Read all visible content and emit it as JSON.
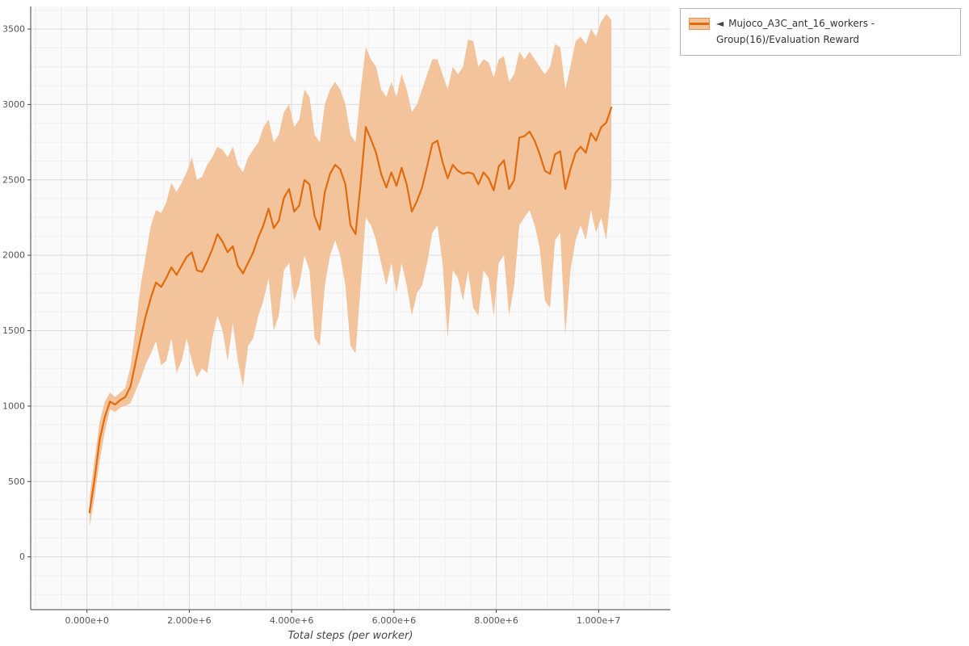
{
  "style": {
    "background": "#ffffff",
    "plot_bg": "#fafafa",
    "grid_minor": "#eeeeee",
    "grid_major": "#dddddd",
    "spine": "#444444",
    "tick_color": "#555555",
    "line_color": "#e06c0e",
    "band_color": "#f3c39c"
  },
  "legend": {
    "toggle_icon": "◄",
    "label": "Mujoco_A3C_ant_16_workers - Group(16)/Evaluation Reward"
  },
  "chart_data": {
    "type": "line",
    "title": "",
    "xlabel": "Total steps (per worker)",
    "ylabel": "",
    "series_name": "Mujoco_A3C_ant_16_workers - Group(16)/Evaluation Reward",
    "legend_position": "top-right-outside",
    "grid": true,
    "x_unit": 1000000,
    "xlim_e6": [
      -1.1,
      11.4
    ],
    "ylim": [
      -350,
      3650
    ],
    "x_ticks": [
      {
        "v": 0,
        "label": "0.000e+0"
      },
      {
        "v": 2,
        "label": "2.000e+6"
      },
      {
        "v": 4,
        "label": "4.000e+6"
      },
      {
        "v": 6,
        "label": "6.000e+6"
      },
      {
        "v": 8,
        "label": "8.000e+6"
      },
      {
        "v": 10,
        "label": "1.000e+7"
      }
    ],
    "y_ticks": [
      0,
      500,
      1000,
      1500,
      2000,
      2500,
      3000,
      3500
    ],
    "x_e6": [
      0.05,
      0.15,
      0.25,
      0.35,
      0.45,
      0.55,
      0.65,
      0.75,
      0.85,
      0.95,
      1.05,
      1.15,
      1.25,
      1.35,
      1.45,
      1.55,
      1.65,
      1.75,
      1.85,
      1.95,
      2.05,
      2.15,
      2.25,
      2.35,
      2.45,
      2.55,
      2.65,
      2.75,
      2.85,
      2.95,
      3.05,
      3.15,
      3.25,
      3.35,
      3.45,
      3.55,
      3.65,
      3.75,
      3.85,
      3.95,
      4.05,
      4.15,
      4.25,
      4.35,
      4.45,
      4.55,
      4.65,
      4.75,
      4.85,
      4.95,
      5.05,
      5.15,
      5.25,
      5.35,
      5.45,
      5.55,
      5.65,
      5.75,
      5.85,
      5.95,
      6.05,
      6.15,
      6.25,
      6.35,
      6.45,
      6.55,
      6.65,
      6.75,
      6.85,
      6.95,
      7.05,
      7.15,
      7.25,
      7.35,
      7.45,
      7.55,
      7.65,
      7.75,
      7.85,
      7.95,
      8.05,
      8.15,
      8.25,
      8.35,
      8.45,
      8.55,
      8.65,
      8.75,
      8.85,
      8.95,
      9.05,
      9.15,
      9.25,
      9.35,
      9.45,
      9.55,
      9.65,
      9.75,
      9.85,
      9.95,
      10.05,
      10.15,
      10.25
    ],
    "mean": [
      295,
      520,
      780,
      930,
      1030,
      1010,
      1040,
      1060,
      1130,
      1290,
      1450,
      1600,
      1720,
      1820,
      1790,
      1850,
      1920,
      1870,
      1930,
      1990,
      2020,
      1900,
      1890,
      1960,
      2040,
      2140,
      2090,
      2020,
      2060,
      1930,
      1880,
      1950,
      2020,
      2120,
      2200,
      2310,
      2180,
      2230,
      2380,
      2440,
      2290,
      2330,
      2500,
      2470,
      2260,
      2170,
      2420,
      2540,
      2600,
      2570,
      2470,
      2200,
      2140,
      2480,
      2850,
      2770,
      2680,
      2540,
      2450,
      2550,
      2460,
      2580,
      2470,
      2290,
      2360,
      2450,
      2590,
      2740,
      2760,
      2620,
      2510,
      2600,
      2560,
      2540,
      2550,
      2540,
      2470,
      2550,
      2510,
      2430,
      2590,
      2630,
      2440,
      2500,
      2780,
      2790,
      2820,
      2760,
      2670,
      2560,
      2540,
      2670,
      2690,
      2440,
      2570,
      2680,
      2720,
      2680,
      2810,
      2760,
      2850,
      2880,
      2980
    ],
    "lower": [
      200,
      400,
      640,
      830,
      980,
      960,
      990,
      1000,
      1020,
      1100,
      1180,
      1280,
      1350,
      1430,
      1270,
      1300,
      1450,
      1220,
      1300,
      1450,
      1300,
      1190,
      1250,
      1220,
      1450,
      1600,
      1500,
      1300,
      1550,
      1300,
      1130,
      1400,
      1450,
      1600,
      1700,
      1850,
      1500,
      1600,
      1900,
      1950,
      1700,
      1800,
      2000,
      1900,
      1450,
      1400,
      1800,
      2000,
      2100,
      2000,
      1800,
      1400,
      1350,
      1800,
      2250,
      2200,
      2100,
      1950,
      1800,
      1950,
      1750,
      1950,
      1800,
      1600,
      1750,
      1800,
      1950,
      2150,
      2200,
      1950,
      1450,
      1900,
      1850,
      1700,
      1900,
      1650,
      1600,
      1900,
      1850,
      1600,
      1950,
      2000,
      1600,
      1800,
      2200,
      2250,
      2300,
      2200,
      2050,
      1700,
      1650,
      2100,
      2150,
      1470,
      1900,
      2100,
      2200,
      2100,
      2300,
      2150,
      2250,
      2100,
      2450
    ],
    "upper": [
      400,
      650,
      900,
      1030,
      1090,
      1060,
      1090,
      1120,
      1260,
      1520,
      1800,
      2000,
      2200,
      2300,
      2280,
      2350,
      2480,
      2420,
      2480,
      2550,
      2650,
      2500,
      2520,
      2600,
      2650,
      2720,
      2700,
      2650,
      2720,
      2600,
      2550,
      2650,
      2700,
      2750,
      2850,
      2900,
      2750,
      2800,
      2950,
      3000,
      2850,
      2900,
      3100,
      3050,
      2800,
      2750,
      3000,
      3100,
      3150,
      3100,
      3000,
      2800,
      2750,
      3100,
      3380,
      3300,
      3250,
      3100,
      3050,
      3150,
      3050,
      3200,
      3100,
      2950,
      3000,
      3100,
      3200,
      3300,
      3300,
      3200,
      3100,
      3250,
      3200,
      3250,
      3430,
      3420,
      3250,
      3300,
      3280,
      3180,
      3300,
      3320,
      3150,
      3200,
      3350,
      3300,
      3350,
      3300,
      3250,
      3200,
      3250,
      3400,
      3380,
      3100,
      3250,
      3420,
      3450,
      3400,
      3500,
      3450,
      3550,
      3600,
      3560
    ]
  }
}
